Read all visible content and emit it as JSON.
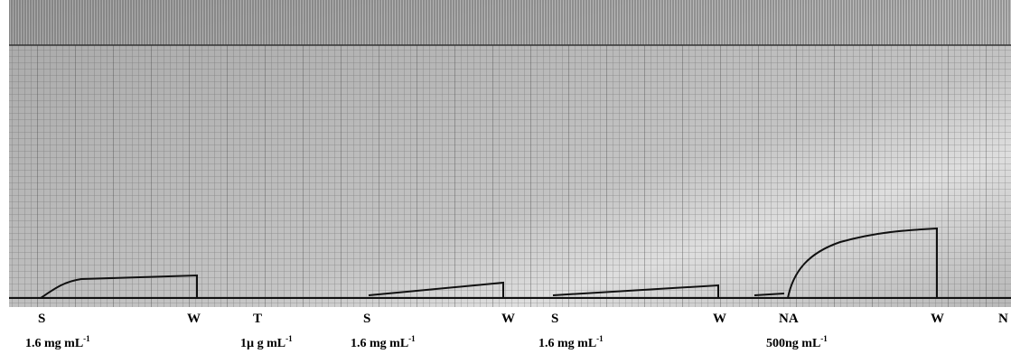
{
  "markers": [
    {
      "label": "S",
      "dose": "1.6 mg mL",
      "exponent": "-1"
    },
    {
      "label": "W"
    },
    {
      "label": "T",
      "dose": "1µ g mL",
      "exponent": "-1"
    },
    {
      "label": "S",
      "dose": "1.6 mg mL",
      "exponent": "-1"
    },
    {
      "label": "W"
    },
    {
      "label": "S",
      "dose": "1.6 mg mL",
      "exponent": "-1"
    },
    {
      "label": "W"
    },
    {
      "label": "NA",
      "dose": "500ng mL",
      "exponent": "-1"
    },
    {
      "label": "W"
    },
    {
      "label": "N"
    }
  ]
}
